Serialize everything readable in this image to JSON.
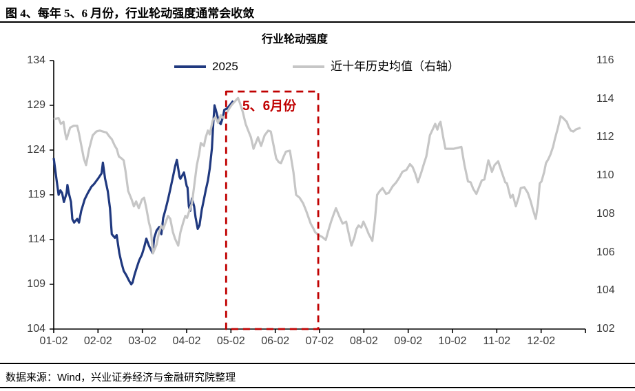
{
  "header": {
    "title": "图 4、每年 5、6 月份，行业轮动强度通常会收敛"
  },
  "footer": {
    "source": "数据来源：Wind，兴业证券经济与金融研究院整理"
  },
  "colors": {
    "line_2025": "#20397f",
    "line_avg": "#c6c6c6",
    "annotation": "#c00000",
    "axis": "#000000",
    "tick_text": "#3a3a3a"
  },
  "chart_data": {
    "type": "line",
    "title": "行业轮动强度",
    "legend": [
      {
        "name": "2025"
      },
      {
        "name": "近十年历史均值（右轴）"
      }
    ],
    "x_tick_labels": [
      "01-02",
      "02-02",
      "03-02",
      "04-02",
      "05-02",
      "06-02",
      "07-02",
      "08-02",
      "09-02",
      "10-02",
      "11-02",
      "12-02"
    ],
    "left_axis": {
      "min": 104,
      "max": 134,
      "ticks": [
        134,
        129,
        124,
        119,
        114,
        109,
        104
      ]
    },
    "right_axis": {
      "min": 102,
      "max": 116,
      "ticks": [
        116,
        114,
        112,
        110,
        108,
        106,
        104,
        102
      ]
    },
    "grid": false,
    "annotation": {
      "label": "5、6月份"
    },
    "series": [
      {
        "name": "2025",
        "axis": "left",
        "color_key": "line_2025",
        "points": [
          [
            0,
            123.1
          ],
          [
            0.06,
            120.8
          ],
          [
            0.11,
            119.0
          ],
          [
            0.15,
            119.5
          ],
          [
            0.19,
            119.2
          ],
          [
            0.23,
            118.2
          ],
          [
            0.29,
            119.2
          ],
          [
            0.31,
            120.1
          ],
          [
            0.34,
            119.2
          ],
          [
            0.39,
            118.2
          ],
          [
            0.42,
            116.3
          ],
          [
            0.46,
            115.9
          ],
          [
            0.53,
            116.3
          ],
          [
            0.57,
            115.9
          ],
          [
            0.62,
            117.2
          ],
          [
            0.7,
            118.5
          ],
          [
            0.77,
            119.2
          ],
          [
            0.85,
            119.9
          ],
          [
            0.91,
            120.2
          ],
          [
            1.0,
            120.8
          ],
          [
            1.08,
            121.4
          ],
          [
            1.11,
            122.6
          ],
          [
            1.16,
            120.8
          ],
          [
            1.22,
            119.4
          ],
          [
            1.27,
            117.5
          ],
          [
            1.31,
            114.6
          ],
          [
            1.38,
            114.2
          ],
          [
            1.42,
            114.5
          ],
          [
            1.48,
            112.5
          ],
          [
            1.53,
            111.4
          ],
          [
            1.58,
            110.5
          ],
          [
            1.64,
            110.0
          ],
          [
            1.7,
            109.4
          ],
          [
            1.75,
            109.0
          ],
          [
            1.78,
            109.2
          ],
          [
            1.82,
            110.0
          ],
          [
            1.87,
            110.8
          ],
          [
            1.93,
            111.7
          ],
          [
            1.99,
            112.3
          ],
          [
            2.04,
            113.1
          ],
          [
            2.09,
            114.1
          ],
          [
            2.15,
            113.3
          ],
          [
            2.19,
            112.9
          ],
          [
            2.23,
            112.5
          ],
          [
            2.27,
            114.2
          ],
          [
            2.32,
            115.0
          ],
          [
            2.38,
            115.4
          ],
          [
            2.43,
            114.6
          ],
          [
            2.47,
            116.4
          ],
          [
            2.53,
            117.5
          ],
          [
            2.58,
            118.5
          ],
          [
            2.63,
            119.6
          ],
          [
            2.69,
            121.0
          ],
          [
            2.74,
            122.2
          ],
          [
            2.78,
            122.9
          ],
          [
            2.84,
            121.0
          ],
          [
            2.86,
            120.8
          ],
          [
            2.94,
            121.5
          ],
          [
            3.0,
            120.0
          ],
          [
            3.02,
            119.8
          ],
          [
            3.05,
            117.7
          ],
          [
            3.08,
            117.2
          ],
          [
            3.12,
            118.6
          ],
          [
            3.17,
            117.7
          ],
          [
            3.2,
            116.5
          ],
          [
            3.25,
            115.2
          ],
          [
            3.29,
            115.6
          ],
          [
            3.34,
            117.3
          ],
          [
            3.39,
            118.5
          ],
          [
            3.43,
            119.5
          ],
          [
            3.48,
            120.6
          ],
          [
            3.52,
            121.9
          ],
          [
            3.57,
            124.2
          ],
          [
            3.6,
            126.9
          ],
          [
            3.63,
            129.0
          ],
          [
            3.68,
            128.1
          ],
          [
            3.71,
            127.5
          ],
          [
            3.74,
            127.1
          ],
          [
            3.77,
            126.9
          ],
          [
            3.82,
            127.7
          ],
          [
            3.85,
            128.5
          ],
          [
            3.9,
            128.6
          ],
          [
            3.94,
            128.8
          ],
          [
            3.99,
            129.1
          ],
          [
            4.02,
            129.3
          ],
          [
            4.05,
            129.5
          ]
        ]
      },
      {
        "name": "近十年历史均值（右轴）",
        "axis": "right",
        "color_key": "line_avg",
        "points": [
          [
            0,
            112.95
          ],
          [
            0.11,
            113.0
          ],
          [
            0.16,
            112.7
          ],
          [
            0.22,
            112.8
          ],
          [
            0.26,
            112.2
          ],
          [
            0.29,
            111.9
          ],
          [
            0.37,
            112.5
          ],
          [
            0.45,
            112.6
          ],
          [
            0.53,
            112.6
          ],
          [
            0.57,
            112.2
          ],
          [
            0.62,
            111.6
          ],
          [
            0.68,
            110.9
          ],
          [
            0.73,
            110.55
          ],
          [
            0.8,
            111.4
          ],
          [
            0.88,
            112.1
          ],
          [
            0.96,
            112.3
          ],
          [
            1.04,
            112.35
          ],
          [
            1.11,
            112.3
          ],
          [
            1.19,
            112.25
          ],
          [
            1.27,
            112.0
          ],
          [
            1.31,
            111.9
          ],
          [
            1.38,
            111.55
          ],
          [
            1.42,
            111.4
          ],
          [
            1.47,
            111.0
          ],
          [
            1.53,
            110.9
          ],
          [
            1.58,
            110.8
          ],
          [
            1.62,
            110.25
          ],
          [
            1.68,
            109.2
          ],
          [
            1.76,
            108.75
          ],
          [
            1.81,
            108.4
          ],
          [
            1.86,
            108.65
          ],
          [
            1.92,
            108.3
          ],
          [
            1.99,
            108.75
          ],
          [
            2.04,
            108.85
          ],
          [
            2.09,
            108.3
          ],
          [
            2.15,
            107.55
          ],
          [
            2.19,
            107.2
          ],
          [
            2.24,
            105.95
          ],
          [
            2.32,
            106.4
          ],
          [
            2.38,
            107.05
          ],
          [
            2.43,
            107.4
          ],
          [
            2.47,
            107.2
          ],
          [
            2.58,
            107.9
          ],
          [
            2.63,
            107.75
          ],
          [
            2.69,
            107.05
          ],
          [
            2.74,
            106.7
          ],
          [
            2.81,
            106.35
          ],
          [
            2.86,
            107.05
          ],
          [
            2.92,
            107.55
          ],
          [
            2.97,
            107.9
          ],
          [
            3.01,
            107.8
          ],
          [
            3.08,
            108.3
          ],
          [
            3.12,
            108.55
          ],
          [
            3.18,
            109.65
          ],
          [
            3.23,
            110.55
          ],
          [
            3.28,
            111.1
          ],
          [
            3.32,
            111.7
          ],
          [
            3.39,
            111.55
          ],
          [
            3.43,
            112.0
          ],
          [
            3.48,
            112.35
          ],
          [
            3.52,
            112.15
          ],
          [
            3.59,
            112.9
          ],
          [
            3.65,
            113.05
          ],
          [
            3.71,
            112.75
          ],
          [
            3.77,
            113.15
          ],
          [
            3.83,
            113.0
          ],
          [
            3.9,
            113.25
          ],
          [
            3.96,
            113.5
          ],
          [
            4.02,
            113.7
          ],
          [
            4.1,
            113.9
          ],
          [
            4.16,
            114.05
          ],
          [
            4.2,
            113.8
          ],
          [
            4.27,
            113.3
          ],
          [
            4.33,
            112.7
          ],
          [
            4.39,
            112.35
          ],
          [
            4.45,
            112.0
          ],
          [
            4.51,
            111.4
          ],
          [
            4.61,
            112.0
          ],
          [
            4.68,
            111.55
          ],
          [
            4.76,
            112.1
          ],
          [
            4.84,
            112.35
          ],
          [
            4.9,
            112.3
          ],
          [
            4.96,
            111.6
          ],
          [
            5.02,
            110.9
          ],
          [
            5.08,
            110.7
          ],
          [
            5.13,
            110.65
          ],
          [
            5.19,
            111.0
          ],
          [
            5.24,
            111.25
          ],
          [
            5.33,
            111.3
          ],
          [
            5.41,
            110.2
          ],
          [
            5.47,
            109.0
          ],
          [
            5.55,
            108.85
          ],
          [
            5.63,
            108.55
          ],
          [
            5.7,
            108.15
          ],
          [
            5.8,
            107.5
          ],
          [
            5.86,
            107.25
          ],
          [
            5.9,
            107.05
          ],
          [
            5.98,
            106.9
          ],
          [
            6.06,
            106.8
          ],
          [
            6.14,
            106.65
          ],
          [
            6.2,
            107.15
          ],
          [
            6.26,
            107.6
          ],
          [
            6.32,
            108.0
          ],
          [
            6.37,
            108.3
          ],
          [
            6.45,
            107.85
          ],
          [
            6.52,
            107.5
          ],
          [
            6.6,
            107.6
          ],
          [
            6.66,
            106.95
          ],
          [
            6.72,
            106.35
          ],
          [
            6.79,
            106.8
          ],
          [
            6.83,
            107.2
          ],
          [
            6.88,
            107.4
          ],
          [
            6.94,
            107.3
          ],
          [
            6.99,
            107.6
          ],
          [
            7.05,
            107.3
          ],
          [
            7.11,
            106.95
          ],
          [
            7.19,
            106.6
          ],
          [
            7.25,
            107.7
          ],
          [
            7.3,
            109.0
          ],
          [
            7.36,
            109.2
          ],
          [
            7.42,
            109.35
          ],
          [
            7.5,
            109.05
          ],
          [
            7.56,
            109.1
          ],
          [
            7.65,
            109.45
          ],
          [
            7.73,
            109.65
          ],
          [
            7.8,
            109.9
          ],
          [
            7.87,
            110.2
          ],
          [
            7.96,
            110.3
          ],
          [
            8.04,
            110.6
          ],
          [
            8.1,
            110.45
          ],
          [
            8.16,
            110.1
          ],
          [
            8.22,
            109.65
          ],
          [
            8.3,
            110.2
          ],
          [
            8.36,
            110.65
          ],
          [
            8.41,
            111.0
          ],
          [
            8.49,
            112.1
          ],
          [
            8.55,
            112.4
          ],
          [
            8.61,
            112.7
          ],
          [
            8.66,
            112.4
          ],
          [
            8.7,
            112.7
          ],
          [
            8.73,
            112.8
          ],
          [
            8.79,
            112.0
          ],
          [
            8.84,
            111.4
          ],
          [
            8.93,
            111.4
          ],
          [
            9.03,
            111.4
          ],
          [
            9.12,
            111.45
          ],
          [
            9.2,
            111.5
          ],
          [
            9.27,
            110.55
          ],
          [
            9.35,
            109.7
          ],
          [
            9.41,
            109.65
          ],
          [
            9.47,
            109.3
          ],
          [
            9.54,
            109.05
          ],
          [
            9.6,
            109.4
          ],
          [
            9.66,
            109.75
          ],
          [
            9.72,
            109.8
          ],
          [
            9.77,
            110.35
          ],
          [
            9.81,
            110.8
          ],
          [
            9.89,
            110.2
          ],
          [
            9.95,
            110.55
          ],
          [
            10.03,
            110.75
          ],
          [
            10.11,
            110.2
          ],
          [
            10.19,
            109.65
          ],
          [
            10.23,
            109.6
          ],
          [
            10.31,
            108.85
          ],
          [
            10.36,
            109.0
          ],
          [
            10.43,
            108.4
          ],
          [
            10.49,
            108.85
          ],
          [
            10.54,
            109.35
          ],
          [
            10.62,
            109.4
          ],
          [
            10.7,
            109.1
          ],
          [
            10.76,
            108.7
          ],
          [
            10.82,
            108.2
          ],
          [
            10.88,
            107.75
          ],
          [
            10.93,
            108.55
          ],
          [
            10.97,
            109.6
          ],
          [
            11.01,
            109.7
          ],
          [
            11.07,
            110.2
          ],
          [
            11.11,
            110.65
          ],
          [
            11.16,
            110.85
          ],
          [
            11.21,
            111.1
          ],
          [
            11.27,
            111.5
          ],
          [
            11.31,
            111.9
          ],
          [
            11.38,
            112.5
          ],
          [
            11.44,
            113.1
          ],
          [
            11.5,
            113.0
          ],
          [
            11.58,
            112.8
          ],
          [
            11.62,
            112.55
          ],
          [
            11.67,
            112.35
          ],
          [
            11.73,
            112.3
          ],
          [
            11.78,
            112.4
          ],
          [
            11.89,
            112.5
          ]
        ]
      }
    ]
  }
}
